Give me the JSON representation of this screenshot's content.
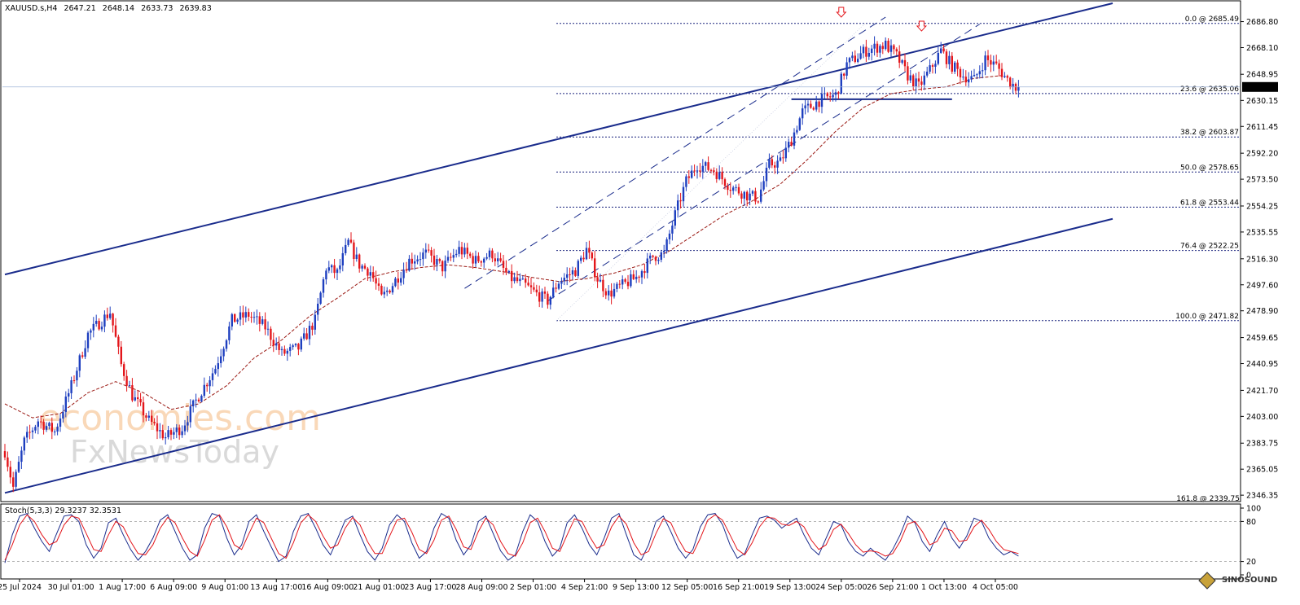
{
  "header": {
    "symbol": "XAUUSD.s,H4",
    "open": "2647.21",
    "high": "2648.14",
    "low": "2633.73",
    "close": "2639.83"
  },
  "current_price_label": "2639.83",
  "watermark": {
    "line1": "economies.com",
    "line2": "FxNewsToday"
  },
  "corner_logo": "SINOSOUND",
  "stoch": {
    "label": "Stoch(5,3,3) 29.3237 32.3531",
    "levels": [
      "100",
      "80",
      "20",
      "0"
    ]
  },
  "colors": {
    "bull": "#1e3fbf",
    "bear": "#e3161b",
    "channel": "#1a2c8c",
    "fib": "#1a237e",
    "ma": "#9b1a14",
    "stoch_main": "#1a2c8c",
    "stoch_signal": "#e3161b",
    "arrow": "#e3161b"
  },
  "chart_data": [
    {
      "type": "candlestick",
      "title": "XAUUSD.s,H4",
      "x_tick_labels": [
        "25 Jul 2024",
        "30 Jul 01:00",
        "1 Aug 17:00",
        "6 Aug 09:00",
        "9 Aug 01:00",
        "13 Aug 17:00",
        "16 Aug 09:00",
        "21 Aug 01:00",
        "23 Aug 17:00",
        "28 Aug 09:00",
        "2 Sep 01:00",
        "4 Sep 21:00",
        "9 Sep 13:00",
        "12 Sep 05:00",
        "16 Sep 21:00",
        "19 Sep 13:00",
        "24 Sep 05:00",
        "26 Sep 21:00",
        "1 Oct 13:00",
        "4 Oct 05:00"
      ],
      "y_tick_labels": [
        "2686.80",
        "2668.10",
        "2648.95",
        "2630.15",
        "2611.45",
        "2592.20",
        "2573.50",
        "2554.25",
        "2535.55",
        "2516.30",
        "2497.60",
        "2478.90",
        "2459.65",
        "2440.95",
        "2421.70",
        "2403.00",
        "2383.75",
        "2365.05",
        "2346.35"
      ],
      "ylim": [
        2343.5,
        2700
      ],
      "last_price": 2639.83,
      "price_path": [
        [
          0,
          2378
        ],
        [
          3,
          2352
        ],
        [
          7,
          2385
        ],
        [
          12,
          2400
        ],
        [
          18,
          2392
        ],
        [
          24,
          2425
        ],
        [
          30,
          2462
        ],
        [
          38,
          2478
        ],
        [
          42,
          2440
        ],
        [
          46,
          2418
        ],
        [
          52,
          2400
        ],
        [
          58,
          2388
        ],
        [
          64,
          2395
        ],
        [
          70,
          2418
        ],
        [
          76,
          2438
        ],
        [
          82,
          2472
        ],
        [
          88,
          2476
        ],
        [
          94,
          2467
        ],
        [
          100,
          2448
        ],
        [
          106,
          2452
        ],
        [
          112,
          2472
        ],
        [
          116,
          2510
        ],
        [
          120,
          2506
        ],
        [
          124,
          2528
        ],
        [
          128,
          2512
        ],
        [
          132,
          2507
        ],
        [
          136,
          2488
        ],
        [
          140,
          2498
        ],
        [
          146,
          2515
        ],
        [
          152,
          2520
        ],
        [
          158,
          2510
        ],
        [
          164,
          2523
        ],
        [
          170,
          2515
        ],
        [
          176,
          2520
        ],
        [
          182,
          2503
        ],
        [
          188,
          2497
        ],
        [
          192,
          2491
        ],
        [
          196,
          2486
        ],
        [
          200,
          2500
        ],
        [
          206,
          2508
        ],
        [
          210,
          2523
        ],
        [
          214,
          2502
        ],
        [
          218,
          2491
        ],
        [
          222,
          2496
        ],
        [
          228,
          2503
        ],
        [
          234,
          2518
        ],
        [
          238,
          2520
        ],
        [
          242,
          2548
        ],
        [
          246,
          2572
        ],
        [
          250,
          2584
        ],
        [
          256,
          2580
        ],
        [
          262,
          2568
        ],
        [
          268,
          2562
        ],
        [
          272,
          2560
        ],
        [
          276,
          2584
        ],
        [
          280,
          2586
        ],
        [
          284,
          2602
        ],
        [
          288,
          2622
        ],
        [
          294,
          2630
        ],
        [
          300,
          2634
        ],
        [
          304,
          2656
        ],
        [
          310,
          2665
        ],
        [
          314,
          2668
        ],
        [
          318,
          2670
        ],
        [
          322,
          2662
        ],
        [
          326,
          2648
        ],
        [
          330,
          2640
        ],
        [
          334,
          2652
        ],
        [
          338,
          2666
        ],
        [
          342,
          2655
        ],
        [
          346,
          2648
        ],
        [
          350,
          2645
        ],
        [
          354,
          2660
        ],
        [
          358,
          2655
        ],
        [
          362,
          2645
        ],
        [
          366,
          2638
        ]
      ],
      "fib_levels": [
        {
          "label": "0.0 @ 2685.49",
          "value": 2685.49
        },
        {
          "label": "23.6 @ 2635.06",
          "value": 2635.06
        },
        {
          "label": "38.2 @ 2603.87",
          "value": 2603.87
        },
        {
          "label": "50.0 @ 2578.65",
          "value": 2578.65
        },
        {
          "label": "61.8 @ 2553.44",
          "value": 2553.44
        },
        {
          "label": "76.4 @ 2522.25",
          "value": 2522.25
        },
        {
          "label": "100.0 @ 2471.82",
          "value": 2471.82
        },
        {
          "label": "161.8 @ 2339.75",
          "value": 2339.75
        }
      ],
      "ma_path": [
        [
          0,
          2412
        ],
        [
          10,
          2402
        ],
        [
          20,
          2405
        ],
        [
          30,
          2420
        ],
        [
          40,
          2428
        ],
        [
          50,
          2420
        ],
        [
          60,
          2408
        ],
        [
          70,
          2412
        ],
        [
          80,
          2425
        ],
        [
          90,
          2445
        ],
        [
          100,
          2458
        ],
        [
          110,
          2475
        ],
        [
          120,
          2488
        ],
        [
          130,
          2502
        ],
        [
          140,
          2507
        ],
        [
          150,
          2510
        ],
        [
          160,
          2512
        ],
        [
          170,
          2510
        ],
        [
          180,
          2507
        ],
        [
          190,
          2503
        ],
        [
          200,
          2500
        ],
        [
          210,
          2502
        ],
        [
          220,
          2506
        ],
        [
          230,
          2512
        ],
        [
          240,
          2522
        ],
        [
          250,
          2535
        ],
        [
          260,
          2548
        ],
        [
          270,
          2558
        ],
        [
          280,
          2570
        ],
        [
          290,
          2588
        ],
        [
          300,
          2608
        ],
        [
          310,
          2625
        ],
        [
          320,
          2635
        ],
        [
          330,
          2638
        ],
        [
          340,
          2640
        ],
        [
          350,
          2646
        ],
        [
          360,
          2648
        ]
      ],
      "main_channel": {
        "upper": [
          [
            0,
            2505
          ],
          [
            400,
            2700
          ]
        ],
        "lower": [
          [
            0,
            2348
          ],
          [
            400,
            2545
          ]
        ]
      },
      "inner_channel": {
        "upper": [
          [
            166,
            2495
          ],
          [
            318,
            2690
          ]
        ],
        "lower": [
          [
            196,
            2486
          ],
          [
            352,
            2685
          ]
        ]
      },
      "neckline": {
        "value": 2631,
        "x": [
          284,
          342
        ]
      },
      "top_markers": [
        {
          "x": 302,
          "value": 2693
        },
        {
          "x": 331,
          "value": 2683
        }
      ]
    },
    {
      "type": "line",
      "title": "Stoch(5,3,3)",
      "ylim": [
        0,
        100
      ],
      "levels": [
        100,
        80,
        20,
        0
      ],
      "y_tick_labels": [
        "100",
        "80",
        "20",
        "0"
      ],
      "series": [
        {
          "values": [
            18,
            60,
            88,
            92,
            70,
            50,
            35,
            62,
            88,
            90,
            80,
            45,
            25,
            40,
            78,
            85,
            60,
            38,
            22,
            35,
            55,
            82,
            90,
            65,
            40,
            22,
            30,
            70,
            92,
            88,
            55,
            30,
            45,
            80,
            90,
            65,
            42,
            20,
            28,
            65,
            88,
            92,
            70,
            45,
            30,
            55,
            82,
            88,
            60,
            35,
            22,
            40,
            75,
            90,
            80,
            48,
            25,
            35,
            70,
            92,
            85,
            52,
            30,
            45,
            80,
            88,
            62,
            36,
            22,
            30,
            65,
            90,
            80,
            50,
            28,
            40,
            78,
            90,
            70,
            45,
            30,
            55,
            85,
            92,
            60,
            30,
            22,
            45,
            80,
            88,
            65,
            40,
            25,
            38,
            72,
            90,
            92,
            75,
            45,
            25,
            32,
            60,
            85,
            88,
            82,
            70,
            78,
            85,
            60,
            40,
            30,
            55,
            80,
            75,
            50,
            35,
            28,
            40,
            30,
            22,
            38,
            60,
            88,
            78,
            50,
            35,
            60,
            80,
            55,
            40,
            58,
            85,
            80,
            55,
            40,
            30,
            35,
            28
          ]
        },
        {
          "values": [
            22,
            45,
            75,
            90,
            80,
            60,
            45,
            50,
            75,
            88,
            85,
            62,
            38,
            35,
            60,
            80,
            72,
            50,
            32,
            30,
            45,
            70,
            86,
            78,
            55,
            35,
            28,
            52,
            82,
            90,
            72,
            45,
            38,
            62,
            85,
            78,
            55,
            32,
            25,
            48,
            78,
            90,
            80,
            58,
            40,
            45,
            70,
            86,
            75,
            50,
            32,
            32,
            58,
            82,
            85,
            64,
            38,
            32,
            52,
            82,
            88,
            68,
            42,
            38,
            65,
            85,
            75,
            50,
            32,
            28,
            48,
            78,
            85,
            65,
            40,
            35,
            60,
            84,
            80,
            58,
            40,
            45,
            72,
            88,
            76,
            48,
            30,
            35,
            62,
            84,
            78,
            54,
            35,
            32,
            55,
            82,
            90,
            82,
            60,
            38,
            30,
            48,
            72,
            86,
            85,
            76,
            74,
            80,
            72,
            52,
            38,
            45,
            68,
            76,
            62,
            45,
            34,
            36,
            34,
            28,
            32,
            50,
            76,
            80,
            65,
            45,
            50,
            70,
            66,
            50,
            52,
            72,
            82,
            68,
            50,
            38,
            35,
            32
          ]
        }
      ]
    }
  ]
}
